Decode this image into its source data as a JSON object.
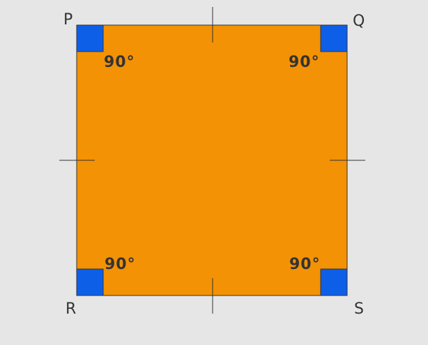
{
  "vertices": {
    "top_left": "P",
    "top_right": "Q",
    "bottom_left": "R",
    "bottom_right": "S"
  },
  "angles": {
    "top_left": "90°",
    "top_right": "90°",
    "bottom_left": "90°",
    "bottom_right": "90°"
  },
  "colors": {
    "background": "#e6e6e6",
    "square_fill": "#f39204",
    "right_angle_marker": "#0d5fe8",
    "stroke": "#333333"
  }
}
